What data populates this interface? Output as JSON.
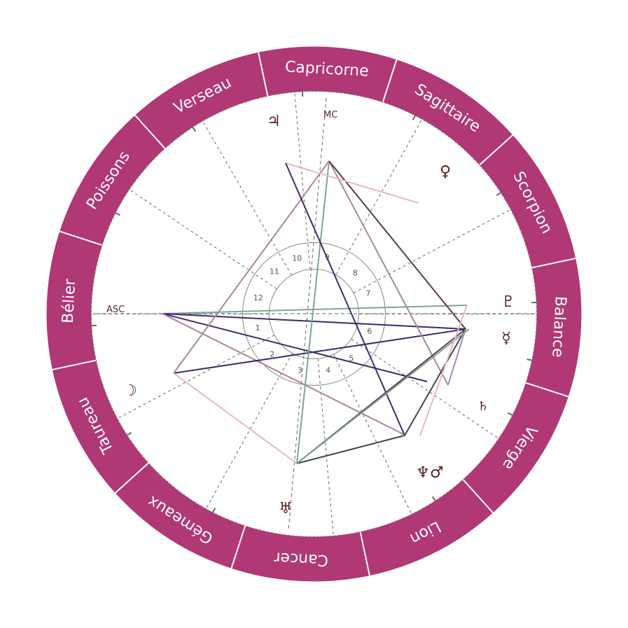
{
  "signs": [
    "Capricorne",
    "Sagittaire",
    "Scorpion",
    "Balance",
    "Vierge",
    "Lion",
    "Cancer",
    "Gémeaux",
    "Taureau",
    "Bélier",
    "Poissons",
    "Verseau"
  ],
  "houses": [
    "1",
    "2",
    "3",
    "4",
    "5",
    "6",
    "7",
    "8",
    "9",
    "10",
    "11",
    "12"
  ],
  "angles": {
    "asc": "ASC",
    "mc": "MC"
  },
  "planets": [
    {
      "name": "jupiter",
      "glyph": "♃"
    },
    {
      "name": "venus",
      "glyph": "♀"
    },
    {
      "name": "pluto",
      "glyph": "♇"
    },
    {
      "name": "mercury",
      "glyph": "☿"
    },
    {
      "name": "saturn",
      "glyph": "♄"
    },
    {
      "name": "neptune-mars",
      "glyph": "♆♂"
    },
    {
      "name": "uranus",
      "glyph": "♅"
    },
    {
      "name": "moon",
      "glyph": "☽"
    }
  ],
  "colors": {
    "ring": "#b03874",
    "aspect_dark_purple": "#3e2a6b",
    "aspect_teal": "#7fa39a",
    "aspect_mauve": "#ab8595",
    "aspect_pink": "#e9b7c8",
    "aspect_plum": "#5b3a4c",
    "aspect_lilac": "#9e8ab8",
    "aspect_dark_green": "#3a4a45"
  }
}
